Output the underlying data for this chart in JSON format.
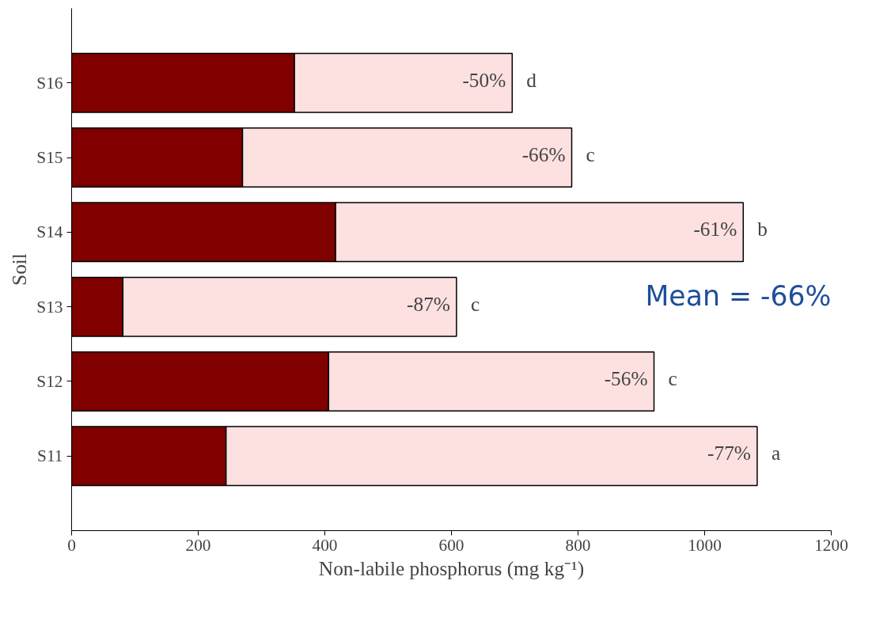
{
  "chart_data": {
    "type": "bar",
    "orientation": "horizontal",
    "stacked": true,
    "categories": [
      "S16",
      "S15",
      "S14",
      "S13",
      "S12",
      "S11"
    ],
    "series": [
      {
        "color": "#800000",
        "values": [
          352,
          270,
          417,
          81,
          406,
          244
        ]
      },
      {
        "color": "#fde0e0",
        "values": [
          344,
          520,
          644,
          527,
          514,
          839
        ]
      }
    ],
    "xlim": [
      0,
      1200
    ],
    "xticks": [
      0,
      200,
      400,
      600,
      800,
      1000,
      1200
    ],
    "xlabel": "Non-labile phosphorus (mg kg⁻¹)",
    "ylabel": "Soil",
    "annotations": [
      {
        "text": "-50%",
        "x": 696,
        "y": "S16"
      },
      {
        "text": "-66%",
        "x": 790,
        "y": "S15"
      },
      {
        "text": "-61%",
        "x": 1061,
        "y": "S14"
      },
      {
        "text": "-87%",
        "x": 608,
        "y": "S13"
      },
      {
        "text": "-56%",
        "x": 920,
        "y": "S12"
      },
      {
        "text": "-77%",
        "x": 1083,
        "y": "S11"
      },
      {
        "text": "d",
        "x": 696,
        "y": "S16"
      },
      {
        "text": "c",
        "x": 790,
        "y": "S15"
      },
      {
        "text": "b",
        "x": 1061,
        "y": "S14"
      },
      {
        "text": "c",
        "x": 608,
        "y": "S13"
      },
      {
        "text": "c",
        "x": 920,
        "y": "S12"
      },
      {
        "text": "a",
        "x": 1083,
        "y": "S11"
      },
      "Mean = -66%"
    ],
    "grid": false
  }
}
